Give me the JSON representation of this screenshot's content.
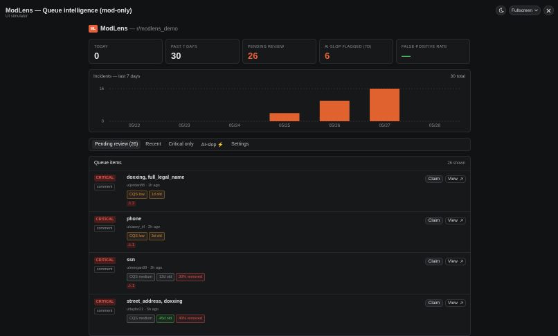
{
  "header": {
    "title": "ModLens — Queue intelligence (mod-only)",
    "subtitle": "UI simulator",
    "fullscreen": "Fullscreen"
  },
  "brand": {
    "logo": "ML",
    "name": "ModLens",
    "subreddit": "— r/modlens_demo"
  },
  "stats": [
    {
      "label": "TODAY",
      "value": 0,
      "color": "#e8e8e8"
    },
    {
      "label": "PAST 7 DAYS",
      "value": 30,
      "color": "#e8e8e8"
    },
    {
      "label": "PENDING REVIEW",
      "value": 26,
      "color": "#e8613a"
    },
    {
      "label": "AI-SLOP FLAGGED (7D)",
      "value": 6,
      "color": "#e8613a"
    },
    {
      "label": "FALSE-POSITIVE RATE",
      "value": "—",
      "color": "#3fbf5f"
    }
  ],
  "chart_data": {
    "type": "bar",
    "title": "Incidents — last 7 days",
    "total": "30 total",
    "categories": [
      "05/22",
      "05/23",
      "05/24",
      "05/25",
      "05/26",
      "05/27",
      "05/28"
    ],
    "values": [
      0,
      0,
      0,
      4,
      10,
      16,
      0
    ],
    "color": "#e0622f",
    "ylim": [
      0,
      16
    ],
    "yticks": [
      0,
      16
    ],
    "grid": true
  },
  "tabs": [
    "Pending review (26)",
    "Recent",
    "Critical only",
    "AI-slop ⚡",
    "Settings"
  ],
  "active_tab": 0,
  "queue": {
    "title": "Queue items",
    "count": "26 shown",
    "claim": "Claim",
    "view": "View",
    "items": [
      {
        "severity": "CRITICAL",
        "kind": "comment",
        "title": "doxxing, full_legal_name",
        "meta": "u/jordan88 · 1h ago",
        "tags": [
          {
            "text": "CQS low",
            "color": "#d08a3c"
          },
          {
            "text": "1d old",
            "color": "#d08a3c"
          }
        ],
        "flags": 2
      },
      {
        "severity": "CRITICAL",
        "kind": "comment",
        "title": "phone",
        "meta": "u/casey_irl · 2h ago",
        "tags": [
          {
            "text": "CQS low",
            "color": "#d08a3c"
          },
          {
            "text": "3d old",
            "color": "#d08a3c"
          }
        ],
        "flags": 1
      },
      {
        "severity": "CRITICAL",
        "kind": "comment",
        "title": "ssn",
        "meta": "u/morgan99 · 3h ago",
        "tags": [
          {
            "text": "CQS medium",
            "color": "#8a8a8a"
          },
          {
            "text": "12d old",
            "color": "#8a8a8a"
          },
          {
            "text": "30% removed",
            "color": "#d9534a"
          }
        ],
        "flags": 1
      },
      {
        "severity": "CRITICAL",
        "kind": "comment",
        "title": "street_address, doxxing",
        "meta": "u/taylor21 · 5h ago",
        "tags": [
          {
            "text": "CQS medium",
            "color": "#8a8a8a"
          },
          {
            "text": "45d old",
            "color": "#4fbf5a"
          },
          {
            "text": "40% removed",
            "color": "#d9534a"
          }
        ],
        "flags": null
      }
    ]
  }
}
